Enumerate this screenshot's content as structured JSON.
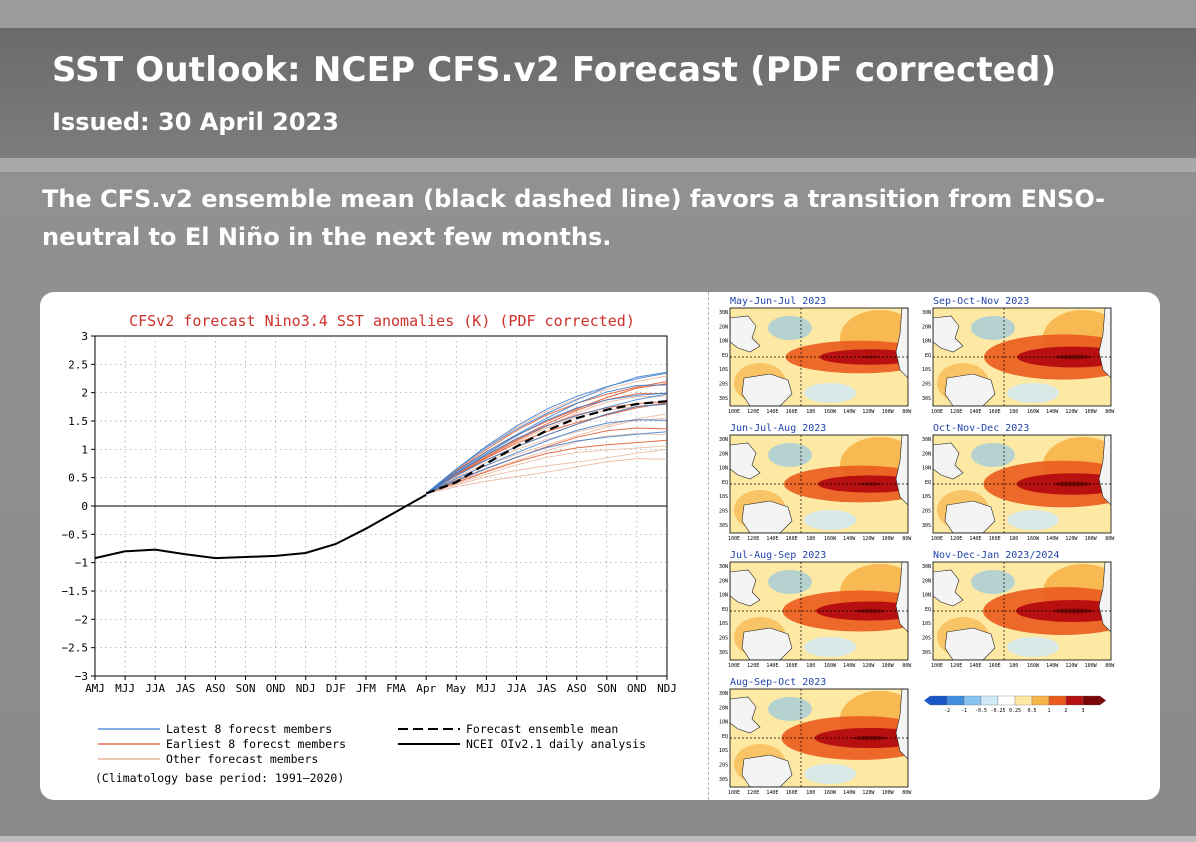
{
  "header": {
    "title": "SST Outlook: NCEP CFS.v2 Forecast (PDF corrected)",
    "issued": "Issued: 30 April 2023"
  },
  "summary": "The CFS.v2 ensemble mean (black dashed line) favors a transition from ENSO-neutral to El Niño in the next few months.",
  "colors": {
    "page_bg": "#a3a3a3",
    "title_band": "#6f6f6f",
    "title_text": "#ffffff",
    "chart_title": "#d0302a",
    "latest_members": "#3a7fd0",
    "earliest_members": "#e0552a",
    "other_members": "#e7a98a",
    "ensemble_mean": "#000000",
    "analysis": "#000000"
  },
  "chart_data": {
    "type": "line",
    "title": "CFSv2 forecast Nino3.4 SST anomalies (K) (PDF corrected)",
    "xlabel": "",
    "ylabel": "",
    "categories": [
      "AMJ",
      "MJJ",
      "JJA",
      "JAS",
      "ASO",
      "SON",
      "OND",
      "NDJ",
      "DJF",
      "JFM",
      "FMA",
      "Apr",
      "May",
      "MJJ",
      "JJA",
      "JAS",
      "ASO",
      "SON",
      "OND",
      "NDJ"
    ],
    "ylim": [
      -3,
      3
    ],
    "yticks": [
      "3",
      "2.5",
      "2",
      "1.5",
      "1",
      "0.5",
      "0",
      "−0.5",
      "−1",
      "−1.5",
      "−2",
      "−2.5",
      "−3"
    ],
    "grid": true,
    "legend_position": "bottom",
    "note": "(Climatology base period: 1991—2020)",
    "series": [
      {
        "name": "NCEI OIv2.1 daily analysis",
        "style": "solid",
        "values": [
          -0.92,
          -0.8,
          -0.77,
          -0.85,
          -0.92,
          -0.9,
          -0.88,
          -0.83,
          -0.67,
          -0.4,
          -0.1,
          0.2,
          null,
          null,
          null,
          null,
          null,
          null,
          null,
          null
        ]
      },
      {
        "name": "Forecast ensemble mean",
        "style": "dashed",
        "values": [
          null,
          null,
          null,
          null,
          null,
          null,
          null,
          null,
          null,
          null,
          null,
          0.22,
          0.42,
          0.75,
          1.05,
          1.33,
          1.55,
          1.7,
          1.8,
          1.85
        ]
      }
    ],
    "member_groups": [
      {
        "name": "Latest 8 forecst members",
        "start": 0.22,
        "ends": [
          2.35,
          2.3,
          2.15,
          2.05,
          1.95,
          1.75,
          1.55,
          1.35
        ]
      },
      {
        "name": "Earliest 8 forecst members",
        "start": 0.22,
        "ends": [
          2.2,
          2.1,
          2.0,
          1.9,
          1.8,
          1.75,
          1.4,
          1.2
        ]
      },
      {
        "name": "Other forecast members",
        "start": 0.22,
        "ends": [
          2.3,
          2.1,
          1.95,
          1.85,
          1.6,
          1.5,
          1.3,
          1.1,
          0.95,
          0.8
        ]
      }
    ],
    "legend": {
      "latest": "Latest 8 forecst members",
      "earliest": "Earliest 8 forecst members",
      "other": "Other forecast members",
      "mean": "Forecast ensemble mean",
      "analysis": "NCEI OIv2.1 daily analysis"
    }
  },
  "maps": {
    "panels": [
      {
        "title": "May-Jun-Jul 2023",
        "intensity": 0.45
      },
      {
        "title": "Sep-Oct-Nov 2023",
        "intensity": 0.9
      },
      {
        "title": "Jun-Jul-Aug 2023",
        "intensity": 0.6
      },
      {
        "title": "Oct-Nov-Dec 2023",
        "intensity": 0.95
      },
      {
        "title": "Jul-Aug-Sep 2023",
        "intensity": 0.75
      },
      {
        "title": "Nov-Dec-Jan 2023/2024",
        "intensity": 1.0
      },
      {
        "title": "Aug-Sep-Oct 2023",
        "intensity": 0.85
      }
    ],
    "lat_labels": [
      "30N",
      "20N",
      "10N",
      "EQ",
      "10S",
      "20S",
      "30S"
    ],
    "lon_labels": [
      "100E",
      "120E",
      "140E",
      "160E",
      "180",
      "160W",
      "140W",
      "120W",
      "100W",
      "80W"
    ],
    "colorbar": {
      "labels": [
        "-2",
        "-1",
        "-0.5",
        "-0.25",
        "0.25",
        "0.5",
        "1",
        "2",
        "3"
      ],
      "colors": [
        "#1a55c8",
        "#3f8ee0",
        "#86c3ee",
        "#cfe9f8",
        "#ffffff",
        "#fde9a4",
        "#f7b44a",
        "#ea5b1c",
        "#b81010",
        "#7a0606"
      ]
    }
  }
}
